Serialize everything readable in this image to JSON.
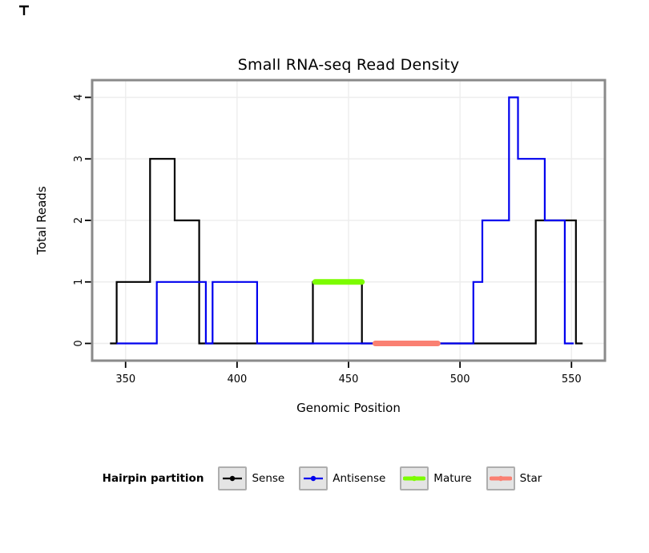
{
  "chart_data": {
    "type": "line",
    "step": true,
    "title": "Small RNA-seq Read Density",
    "xlabel": "Genomic Position",
    "ylabel": "Total Reads",
    "xlim": [
      335,
      565
    ],
    "ylim": [
      -0.28,
      4.28
    ],
    "x_ticks": [
      350,
      400,
      450,
      500,
      550
    ],
    "y_ticks": [
      0,
      1,
      2,
      3,
      4
    ],
    "grid": true,
    "legend_position": "bottom",
    "series": [
      {
        "name": "Sense",
        "color": "#000000",
        "width": 2.2,
        "points": [
          [
            343,
            0
          ],
          [
            346,
            0
          ],
          [
            346,
            1
          ],
          [
            361,
            1
          ],
          [
            361,
            3
          ],
          [
            372,
            3
          ],
          [
            372,
            2
          ],
          [
            383,
            2
          ],
          [
            383,
            0
          ],
          [
            434,
            0
          ],
          [
            434,
            1
          ],
          [
            456,
            1
          ],
          [
            456,
            0
          ],
          [
            534,
            0
          ],
          [
            534,
            2
          ],
          [
            552,
            2
          ],
          [
            552,
            0
          ],
          [
            555,
            0
          ]
        ]
      },
      {
        "name": "Antisense",
        "color": "#0000EE",
        "width": 2.2,
        "points": [
          [
            346,
            0
          ],
          [
            364,
            0
          ],
          [
            364,
            1
          ],
          [
            386,
            1
          ],
          [
            386,
            0
          ],
          [
            389,
            0
          ],
          [
            389,
            1
          ],
          [
            409,
            1
          ],
          [
            409,
            0
          ],
          [
            506,
            0
          ],
          [
            506,
            1
          ],
          [
            510,
            1
          ],
          [
            510,
            2
          ],
          [
            522,
            2
          ],
          [
            522,
            4
          ],
          [
            526,
            4
          ],
          [
            526,
            3
          ],
          [
            538,
            3
          ],
          [
            538,
            2
          ],
          [
            547,
            2
          ],
          [
            547,
            0
          ],
          [
            551,
            0
          ]
        ]
      },
      {
        "name": "Mature",
        "color": "#7CFC00",
        "width": 7,
        "points": [
          [
            435,
            1
          ],
          [
            456,
            1
          ]
        ]
      },
      {
        "name": "Star",
        "color": "#FA8072",
        "width": 7,
        "points": [
          [
            462,
            0
          ],
          [
            490,
            0
          ]
        ]
      }
    ],
    "legend": {
      "title": "Hairpin partition",
      "entries": [
        {
          "label": "Sense",
          "color": "#000000",
          "width": 2.2
        },
        {
          "label": "Antisense",
          "color": "#0000EE",
          "width": 2.2
        },
        {
          "label": "Mature",
          "color": "#7CFC00",
          "width": 5
        },
        {
          "label": "Star",
          "color": "#FA8072",
          "width": 5
        }
      ]
    },
    "colors": {
      "panel_border": "#8a8a8a",
      "grid": "#ededed",
      "tick": "#000000",
      "legend_key_bg": "#e4e4e4",
      "legend_key_border": "#aeaeae"
    }
  }
}
